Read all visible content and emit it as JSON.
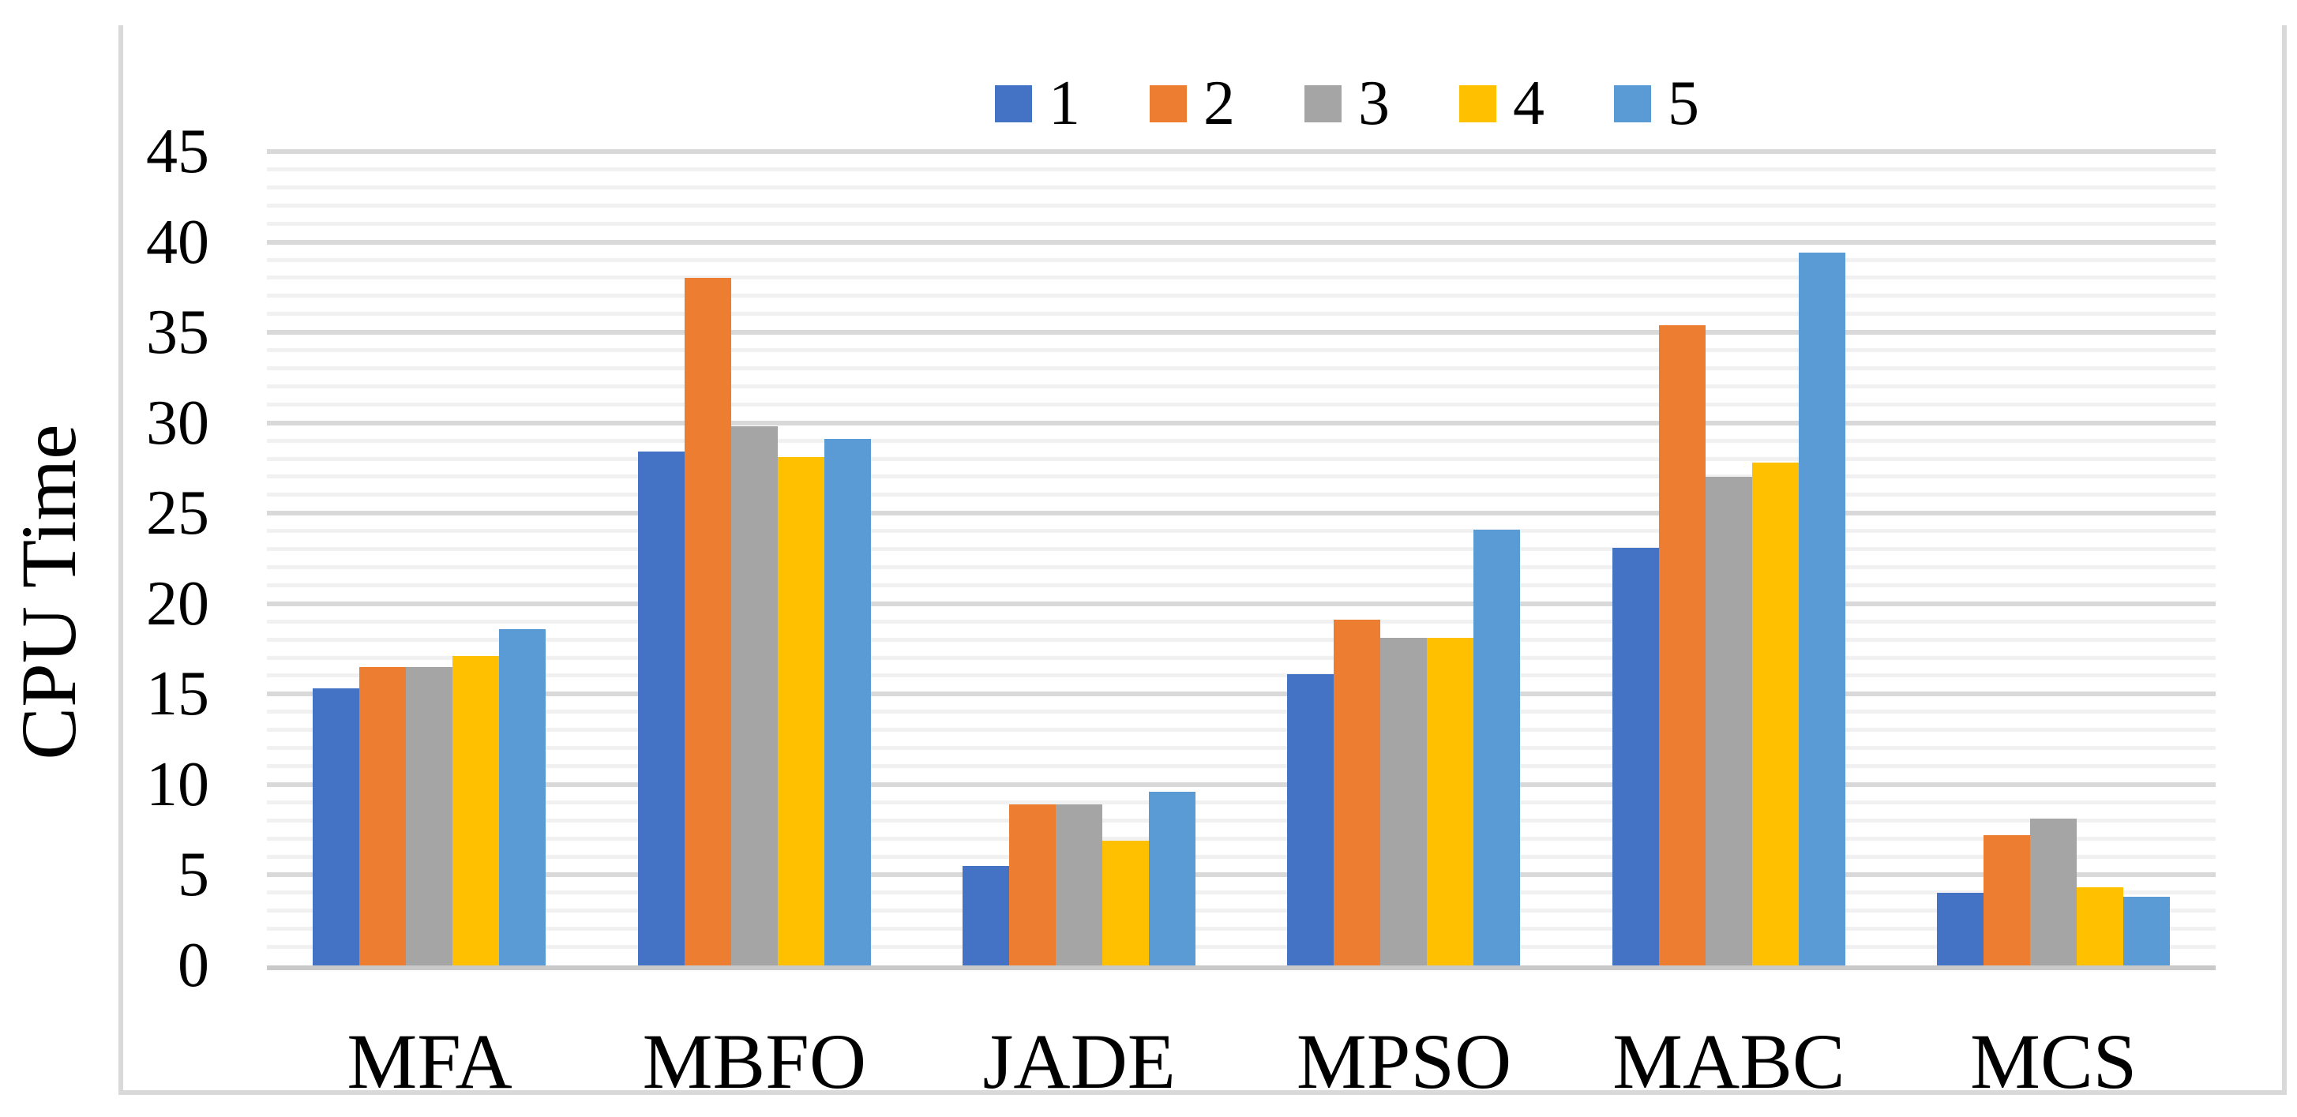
{
  "figure": {
    "background": "#ffffff",
    "border_color": "#d9d9d9"
  },
  "chart_data": {
    "type": "bar",
    "title": "",
    "xlabel": "",
    "ylabel": "CPU Time",
    "ylim": [
      0,
      45
    ],
    "yticks": [
      0,
      5,
      10,
      15,
      20,
      25,
      30,
      35,
      40,
      45
    ],
    "minor_grid_step": 1,
    "grid": "horizontal, major and minor",
    "legend_position": "top-center",
    "categories": [
      "MFA",
      "MBFO",
      "JADE",
      "MPSO",
      "MABC",
      "MCS"
    ],
    "series": [
      {
        "name": "1",
        "color": "#4472C4",
        "values": [
          15.3,
          28.4,
          5.5,
          16.1,
          23.1,
          4.0
        ]
      },
      {
        "name": "2",
        "color": "#ED7D31",
        "values": [
          16.5,
          38.0,
          8.9,
          19.1,
          35.4,
          7.2
        ]
      },
      {
        "name": "3",
        "color": "#A5A5A5",
        "values": [
          16.5,
          29.8,
          8.9,
          18.1,
          27.0,
          8.1
        ]
      },
      {
        "name": "4",
        "color": "#FFC000",
        "values": [
          17.1,
          28.1,
          6.9,
          18.1,
          27.8,
          4.3
        ]
      },
      {
        "name": "5",
        "color": "#5B9BD5",
        "values": [
          18.6,
          29.1,
          9.6,
          24.1,
          39.4,
          3.8
        ]
      }
    ],
    "grid_colors": {
      "minor": "#f1f1f1",
      "major": "#d9d9d9",
      "axis_line": "#c9c9c9"
    }
  }
}
